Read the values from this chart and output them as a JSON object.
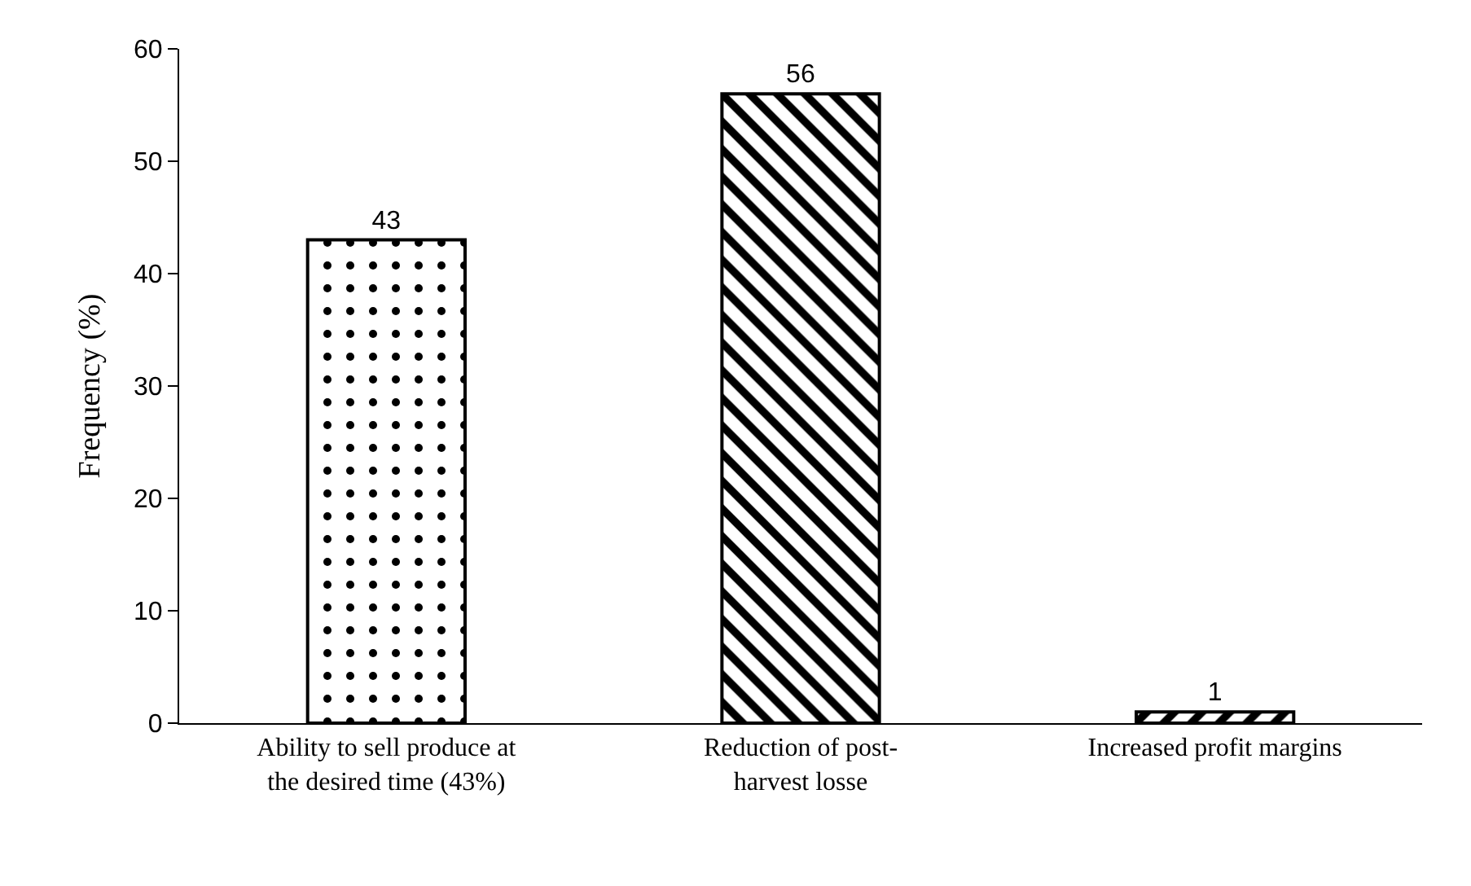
{
  "chart_data": {
    "type": "bar",
    "ylabel": "Frequency (%)",
    "categories": [
      "Ability to sell produce at\nthe desired time (43%)",
      "Reduction of post-\nharvest losse",
      "Increased profit margins"
    ],
    "values": [
      43,
      56,
      1
    ],
    "colors": [
      "#000000",
      "#000000",
      "#000000"
    ],
    "ylim": [
      0,
      60
    ],
    "yticks": [
      0,
      10,
      20,
      30,
      40,
      50,
      60
    ],
    "data_labels": true
  }
}
